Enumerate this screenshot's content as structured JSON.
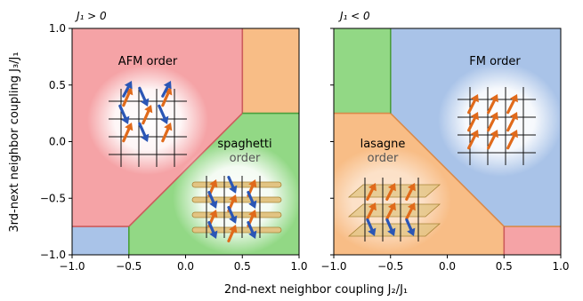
{
  "chart_data": [
    {
      "type": "phase-diagram",
      "title": "J₁ > 0",
      "xlabel": "2nd-next neighbor coupling J₂/J₁",
      "ylabel": "3rd-next neighbor coupling J₃/J₁",
      "xlim": [
        -1.0,
        1.0
      ],
      "ylim": [
        -1.0,
        1.0
      ],
      "xticks": [
        "−1.0",
        "−0.5",
        "0.0",
        "0.5",
        "1.0"
      ],
      "yticks": [
        "−1.0",
        "−0.5",
        "0.0",
        "0.5",
        "1.0"
      ],
      "regions": [
        {
          "label": "AFM order",
          "color": "#f5a3a6",
          "polygon": [
            [
              -1.0,
              -0.75
            ],
            [
              -0.5,
              -0.75
            ],
            [
              0.5,
              0.25
            ],
            [
              0.5,
              1.0
            ],
            [
              -1.0,
              1.0
            ]
          ]
        },
        {
          "label": "spaghetti order",
          "color": "#92d885",
          "polygon": [
            [
              -0.5,
              -1.0
            ],
            [
              -0.5,
              -0.75
            ],
            [
              0.5,
              0.25
            ],
            [
              1.0,
              0.25
            ],
            [
              1.0,
              -1.0
            ]
          ]
        },
        {
          "label": "",
          "color": "#f8bd86",
          "polygon": [
            [
              0.5,
              0.25
            ],
            [
              0.5,
              1.0
            ],
            [
              1.0,
              1.0
            ],
            [
              1.0,
              0.25
            ]
          ]
        },
        {
          "label": "",
          "color": "#a9c3e8",
          "polygon": [
            [
              -1.0,
              -1.0
            ],
            [
              -1.0,
              -0.75
            ],
            [
              -0.5,
              -0.75
            ],
            [
              -0.5,
              -1.0
            ]
          ]
        }
      ],
      "annotations": [
        {
          "text": "AFM order",
          "x": -0.3,
          "y": 0.7
        },
        {
          "text": "spaghetti",
          "x": 0.6,
          "y": -0.05
        },
        {
          "text": "order",
          "x": 0.6,
          "y": -0.17
        }
      ]
    },
    {
      "type": "phase-diagram",
      "title": "J₁ < 0",
      "xlabel": "",
      "ylabel": "",
      "xlim": [
        -1.0,
        1.0
      ],
      "ylim": [
        -1.0,
        1.0
      ],
      "xticks": [
        "−1.0",
        "−0.5",
        "0.0",
        "0.5",
        "1.0"
      ],
      "yticks": [],
      "regions": [
        {
          "label": "FM order",
          "color": "#a9c3e8",
          "polygon": [
            [
              -0.5,
              0.25
            ],
            [
              0.5,
              -0.75
            ],
            [
              1.0,
              -0.75
            ],
            [
              1.0,
              1.0
            ],
            [
              -0.5,
              1.0
            ]
          ]
        },
        {
          "label": "lasagne order",
          "color": "#f8bd86",
          "polygon": [
            [
              -1.0,
              -1.0
            ],
            [
              -1.0,
              0.25
            ],
            [
              -0.5,
              0.25
            ],
            [
              0.5,
              -0.75
            ],
            [
              0.5,
              -1.0
            ]
          ]
        },
        {
          "label": "",
          "color": "#92d885",
          "polygon": [
            [
              -1.0,
              0.25
            ],
            [
              -1.0,
              1.0
            ],
            [
              -0.5,
              1.0
            ],
            [
              -0.5,
              0.25
            ]
          ]
        },
        {
          "label": "",
          "color": "#f5a3a6",
          "polygon": [
            [
              0.5,
              -1.0
            ],
            [
              0.5,
              -0.75
            ],
            [
              1.0,
              -0.75
            ],
            [
              1.0,
              -1.0
            ]
          ]
        }
      ],
      "annotations": [
        {
          "text": "FM order",
          "x": 0.5,
          "y": 0.7
        },
        {
          "text": "lasagne",
          "x": -0.55,
          "y": -0.05
        },
        {
          "text": "order",
          "x": -0.55,
          "y": -0.17
        }
      ]
    }
  ],
  "colors": {
    "spin_orange": "#e06a1b",
    "spin_blue": "#2b56b5",
    "afm_glow": "#fff0f0",
    "ferro_glow": "#eef3fb",
    "green_glow": "#eef9ea",
    "orange_glow": "#fdf3ea",
    "bundle": "#e2c483",
    "bundle_edge": "#a88436",
    "label_gray": "#555555"
  }
}
